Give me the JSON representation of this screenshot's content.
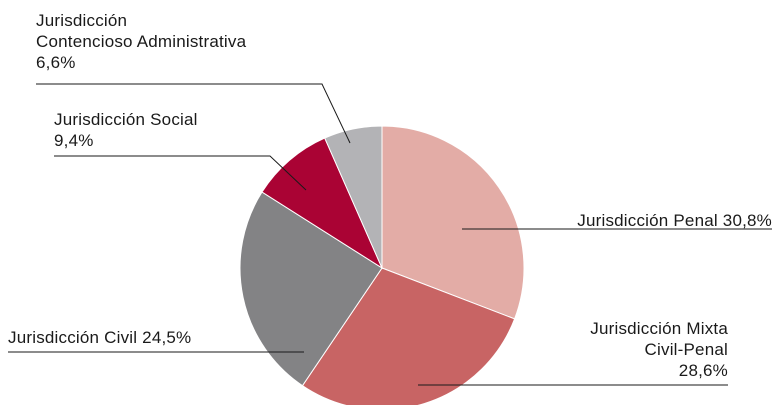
{
  "chart_data": {
    "type": "pie",
    "start_angle_deg": 0,
    "direction": "clockwise",
    "slices": [
      {
        "label_lines": [
          "Jurisdicción Penal 30,8%"
        ],
        "value": 30.8,
        "color": "#e3aca6"
      },
      {
        "label_lines": [
          "Jurisdicción Mixta",
          "Civil-Penal",
          "28,6%"
        ],
        "value": 28.6,
        "color": "#c86464"
      },
      {
        "label_lines": [
          "Jurisdicción Civil 24,5%"
        ],
        "value": 24.5,
        "color": "#838385"
      },
      {
        "label_lines": [
          "Jurisdicción Social",
          "9,4%"
        ],
        "value": 9.4,
        "color": "#aa0334"
      },
      {
        "label_lines": [
          "Jurisdicción",
          "Contencioso Administrativa",
          "6,6%"
        ],
        "value": 6.6,
        "color": "#b3b3b6"
      }
    ]
  }
}
